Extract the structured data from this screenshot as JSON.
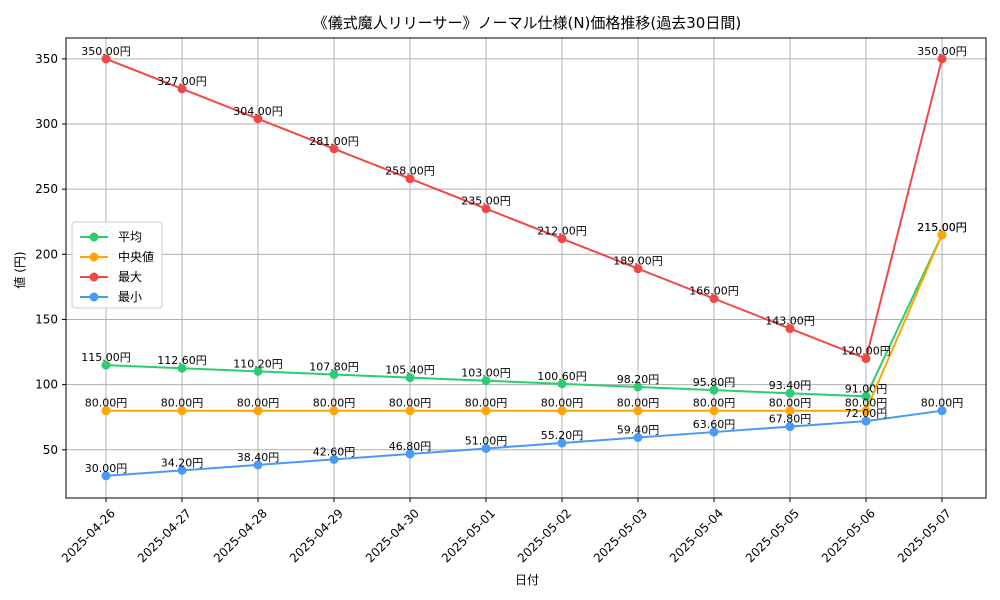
{
  "chart_data": {
    "type": "line",
    "title": "《儀式魔人リリーサー》ノーマル仕様(N)価格推移(過去30日間)",
    "xlabel": "日付",
    "ylabel": "値 (円)",
    "x": [
      "2025-04-26",
      "2025-04-27",
      "2025-04-28",
      "2025-04-29",
      "2025-04-30",
      "2025-05-01",
      "2025-05-02",
      "2025-05-03",
      "2025-05-04",
      "2025-05-05",
      "2025-05-06",
      "2025-05-07"
    ],
    "ylim": [
      13,
      366
    ],
    "yticks": [
      50,
      100,
      150,
      200,
      250,
      300,
      350
    ],
    "grid": true,
    "legend_position": "center-left",
    "value_suffix": "円",
    "series": [
      {
        "name": "平均",
        "color": "#2ecc71",
        "values": [
          115.0,
          112.6,
          110.2,
          107.8,
          105.4,
          103.0,
          100.6,
          98.2,
          95.8,
          93.4,
          91.0,
          215.0
        ]
      },
      {
        "name": "中央値",
        "color": "#ffa500",
        "values": [
          80.0,
          80.0,
          80.0,
          80.0,
          80.0,
          80.0,
          80.0,
          80.0,
          80.0,
          80.0,
          80.0,
          215.0
        ]
      },
      {
        "name": "最大",
        "color": "#f04848",
        "values": [
          350.0,
          327.0,
          304.0,
          281.0,
          258.0,
          235.0,
          212.0,
          189.0,
          166.0,
          143.0,
          120.0,
          350.0
        ]
      },
      {
        "name": "最小",
        "color": "#4a9af5",
        "values": [
          30.0,
          34.2,
          38.4,
          42.6,
          46.8,
          51.0,
          55.2,
          59.4,
          63.6,
          67.8,
          72.0,
          80.0
        ]
      }
    ]
  }
}
